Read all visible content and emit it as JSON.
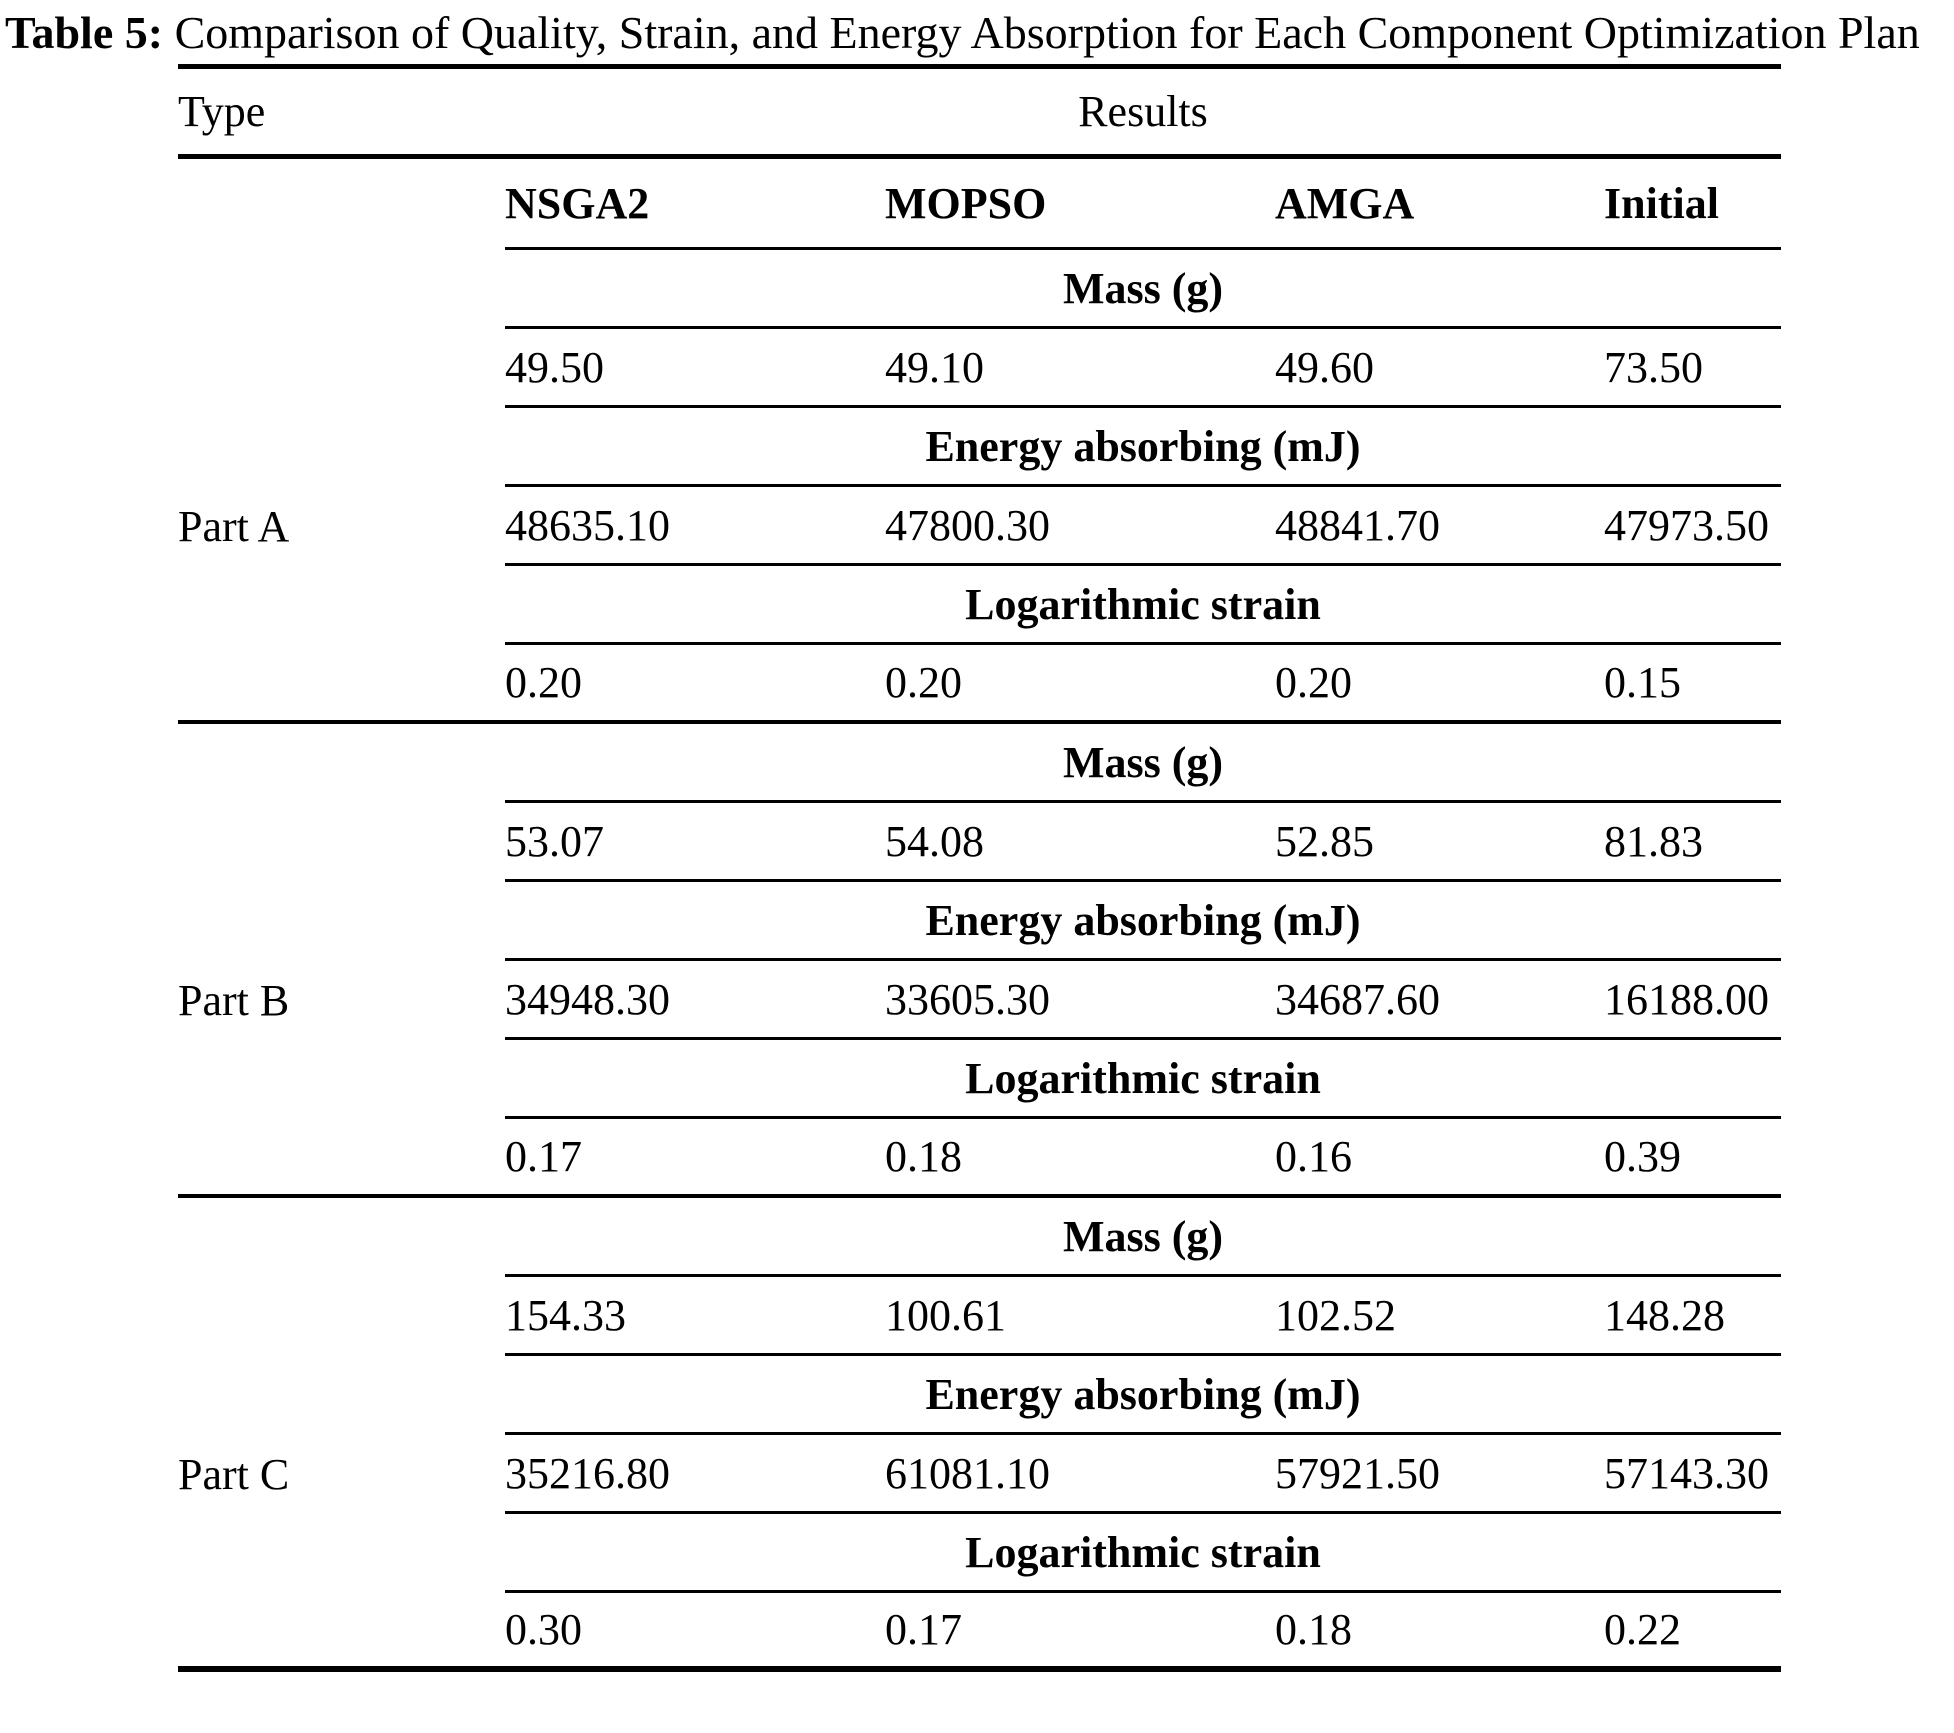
{
  "title": {
    "label": "Table 5:",
    "text": " Comparison of Quality, Strain, and Energy Absorption for Each Component Optimization Plan"
  },
  "table": {
    "type_header": "Type",
    "results_header": "Results",
    "columns": [
      "NSGA2",
      "MOPSO",
      "AMGA",
      "Initial"
    ],
    "metrics": [
      "Mass (g)",
      "Energy absorbing (mJ)",
      "Logarithmic strain"
    ],
    "sections": [
      {
        "part": "Part A",
        "mass": [
          "49.50",
          "49.10",
          "49.60",
          "73.50"
        ],
        "energy": [
          "48635.10",
          "47800.30",
          "48841.70",
          "47973.50"
        ],
        "strain": [
          "0.20",
          "0.20",
          "0.20",
          "0.15"
        ]
      },
      {
        "part": "Part B",
        "mass": [
          "53.07",
          "54.08",
          "52.85",
          "81.83"
        ],
        "energy": [
          "34948.30",
          "33605.30",
          "34687.60",
          "16188.00"
        ],
        "strain": [
          "0.17",
          "0.18",
          "0.16",
          "0.39"
        ]
      },
      {
        "part": "Part C",
        "mass": [
          "154.33",
          "100.61",
          "102.52",
          "148.28"
        ],
        "energy": [
          "35216.80",
          "61081.10",
          "57921.50",
          "57143.30"
        ],
        "strain": [
          "0.30",
          "0.17",
          "0.18",
          "0.22"
        ]
      }
    ]
  }
}
